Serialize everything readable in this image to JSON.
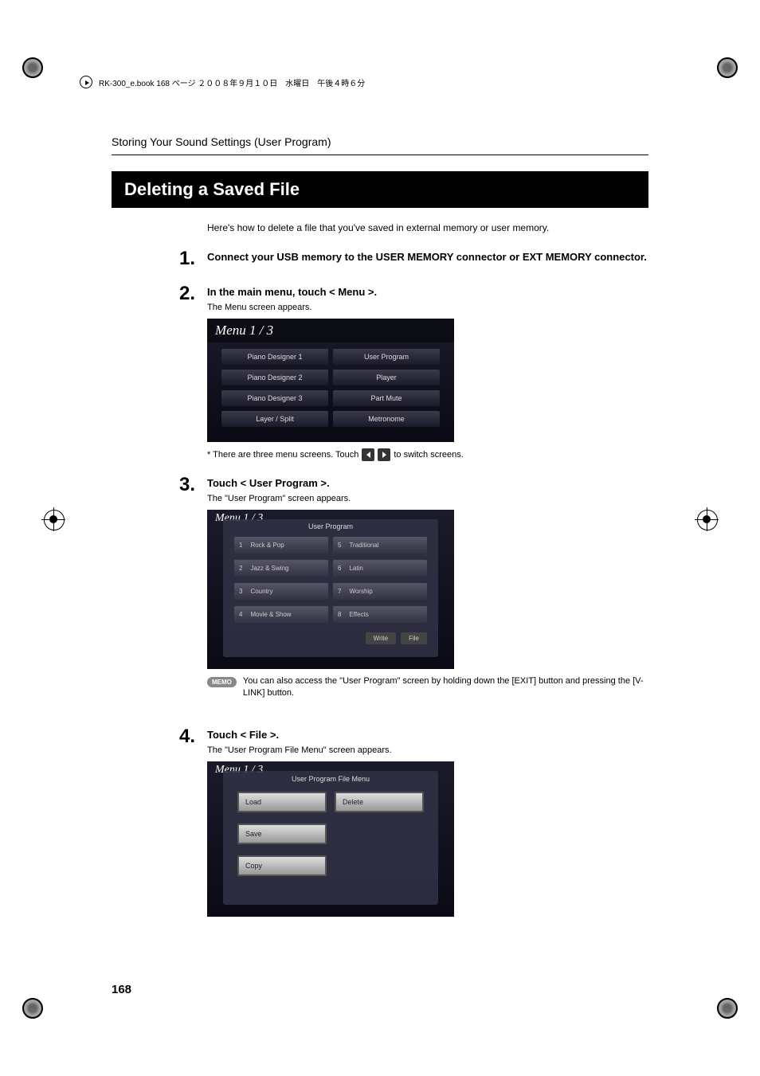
{
  "header": {
    "book_info": "RK-300_e.book 168 ページ ２００８年９月１０日　水曜日　午後４時６分"
  },
  "section_header": "Storing Your Sound Settings (User Program)",
  "title": "Deleting a Saved File",
  "intro": "Here's how to delete a file that you've saved in external memory or user memory.",
  "steps": {
    "s1": {
      "num": "1.",
      "title": "Connect your USB memory to the USER MEMORY connector or EXT MEMORY connector."
    },
    "s2": {
      "num": "2.",
      "title": "In the main menu, touch < Menu >.",
      "desc": "The Menu screen appears.",
      "menu_title": "Menu 1 / 3",
      "menu_items": {
        "i1": "Piano Designer 1",
        "i2": "User Program",
        "i3": "Piano Designer 2",
        "i4": "Player",
        "i5": "Piano Designer 3",
        "i6": "Part Mute",
        "i7": "Layer / Split",
        "i8": "Metronome"
      },
      "footnote_pre": "* There are three menu screens. Touch",
      "footnote_post": "to switch screens."
    },
    "s3": {
      "num": "3.",
      "title": "Touch < User Program >.",
      "desc": "The \"User Program\" screen appears.",
      "menu_label": "Menu 1 / 3",
      "screen_title": "User Program",
      "items": {
        "r1": {
          "n": "1",
          "l": "Rock & Pop"
        },
        "r2": {
          "n": "2",
          "l": "Jazz & Swing"
        },
        "r3": {
          "n": "3",
          "l": "Country"
        },
        "r4": {
          "n": "4",
          "l": "Movie & Show"
        },
        "r5": {
          "n": "5",
          "l": "Traditional"
        },
        "r6": {
          "n": "6",
          "l": "Latin"
        },
        "r7": {
          "n": "7",
          "l": "Worship"
        },
        "r8": {
          "n": "8",
          "l": "Effects"
        }
      },
      "btn_write": "Write",
      "btn_file": "File",
      "memo_label": "MEMO",
      "memo_text": "You can also access the \"User Program\" screen by holding down the [EXIT] button and pressing the [V-LINK] button."
    },
    "s4": {
      "num": "4.",
      "title": "Touch < File >.",
      "desc": "The \"User Program File Menu\" screen appears.",
      "menu_label": "Menu 1 / 3",
      "screen_title": "User Program File Menu",
      "items": {
        "load": "Load",
        "delete": "Delete",
        "save": "Save",
        "copy": "Copy"
      }
    }
  },
  "page_number": "168",
  "colors": {
    "title_bg": "#000000",
    "title_fg": "#ffffff",
    "screen_bg": "#1a1a2a",
    "menu_item_bg": "#3a3a4a",
    "memo_bg": "#888888"
  }
}
